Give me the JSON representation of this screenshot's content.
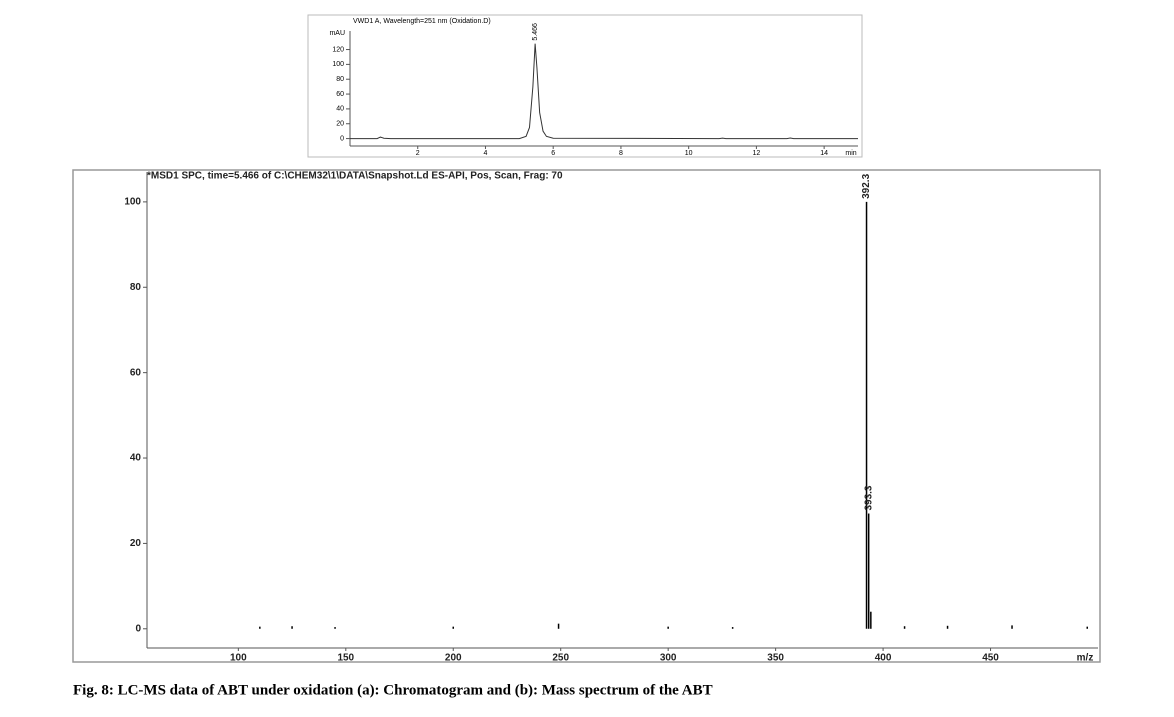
{
  "chart_data": [
    {
      "type": "line",
      "title": "VWD1 A, Wavelength=251 nm (Oxidation.D)",
      "y_label": "mAU",
      "x_label": "min",
      "x": [
        0,
        0.8,
        0.9,
        1.0,
        1.2,
        5.0,
        5.2,
        5.3,
        5.4,
        5.466,
        5.52,
        5.6,
        5.7,
        5.8,
        6.0,
        10.9,
        11.0,
        11.1,
        12.9,
        13.0,
        13.1,
        15
      ],
      "series": [
        {
          "name": "VWD1 A",
          "color": "#333333",
          "values": [
            0,
            0,
            2,
            0.5,
            0,
            0,
            3,
            15,
            70,
            128,
            95,
            35,
            10,
            3,
            0.5,
            0,
            0.6,
            0,
            0,
            0.7,
            0,
            0
          ]
        }
      ],
      "annotations": [
        {
          "x": 5.466,
          "y": 128
        }
      ],
      "xlim": [
        0,
        15
      ],
      "ylim": [
        -10,
        145
      ],
      "xticks": [
        2,
        4,
        6,
        8,
        10,
        12,
        14
      ],
      "yticks": [
        0,
        20,
        40,
        60,
        80,
        100,
        120
      ]
    },
    {
      "type": "stem",
      "title": "*MSD1 SPC, time=5.466 of C:\\CHEM32\\1\\DATA\\Snapshot.Ld    ES-API, Pos, Scan, Frag: 70",
      "x_label": "m/z",
      "x": [
        110,
        125,
        145,
        200,
        249,
        300,
        330,
        392.3,
        393.3,
        394.3,
        410,
        430,
        460,
        495
      ],
      "series": [
        {
          "name": "MSD1 SPC",
          "color": "#000000",
          "values": [
            0.5,
            0.6,
            0.4,
            0.5,
            1.2,
            0.5,
            0.4,
            100,
            27,
            4,
            0.6,
            0.7,
            0.8,
            0.5
          ]
        }
      ],
      "annotations": [
        {
          "x": 392.3,
          "y": 100
        },
        {
          "x": 393.3,
          "y": 27
        }
      ],
      "xlim": [
        57.5,
        500
      ],
      "ylim": [
        -4.5,
        107
      ],
      "xticks": [
        100,
        150,
        200,
        250,
        300,
        350,
        400,
        450
      ],
      "yticks": [
        0,
        20,
        40,
        60,
        80,
        100
      ]
    }
  ],
  "caption": "Fig. 8: LC-MS data of ABT under oxidation (a): Chromatogram and (b): Mass spectrum of the ABT"
}
